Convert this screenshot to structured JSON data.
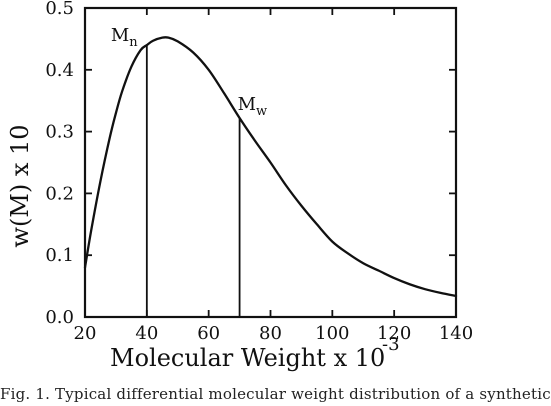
{
  "chart_data": {
    "type": "line",
    "title": "",
    "xlabel": "Molecular Weight x 10",
    "xlabel_exponent": "-3",
    "ylabel": "w(M) x 10",
    "xlim": [
      20,
      140
    ],
    "ylim": [
      0.0,
      0.5
    ],
    "x_ticks": [
      20,
      40,
      60,
      80,
      100,
      120,
      140
    ],
    "y_ticks": [
      0.0,
      0.1,
      0.2,
      0.3,
      0.4,
      0.5
    ],
    "x_tick_labels": [
      "20",
      "40",
      "60",
      "80",
      "100",
      "120",
      "140"
    ],
    "y_tick_labels": [
      "0.0",
      "0.1",
      "0.2",
      "0.3",
      "0.4",
      "0.5"
    ],
    "grid": false,
    "series": [
      {
        "x": [
          20,
          22,
          25,
          28,
          30,
          32,
          35,
          38,
          40,
          42,
          45,
          47,
          50,
          55,
          60,
          65,
          70,
          75,
          80,
          85,
          90,
          95,
          100,
          105,
          110,
          115,
          120,
          125,
          130,
          135,
          140
        ],
        "y": [
          0.08,
          0.14,
          0.22,
          0.29,
          0.33,
          0.365,
          0.405,
          0.432,
          0.44,
          0.447,
          0.452,
          0.452,
          0.446,
          0.428,
          0.4,
          0.362,
          0.322,
          0.285,
          0.25,
          0.213,
          0.18,
          0.15,
          0.122,
          0.103,
          0.087,
          0.075,
          0.063,
          0.053,
          0.045,
          0.039,
          0.034
        ]
      }
    ],
    "markers": [
      {
        "label": "M",
        "subscript": "n",
        "x": 40
      },
      {
        "label": "M",
        "subscript": "w",
        "x": 70
      }
    ]
  },
  "caption": "Fig. 1. Typical differential molecular weight distribution of a synthetic"
}
